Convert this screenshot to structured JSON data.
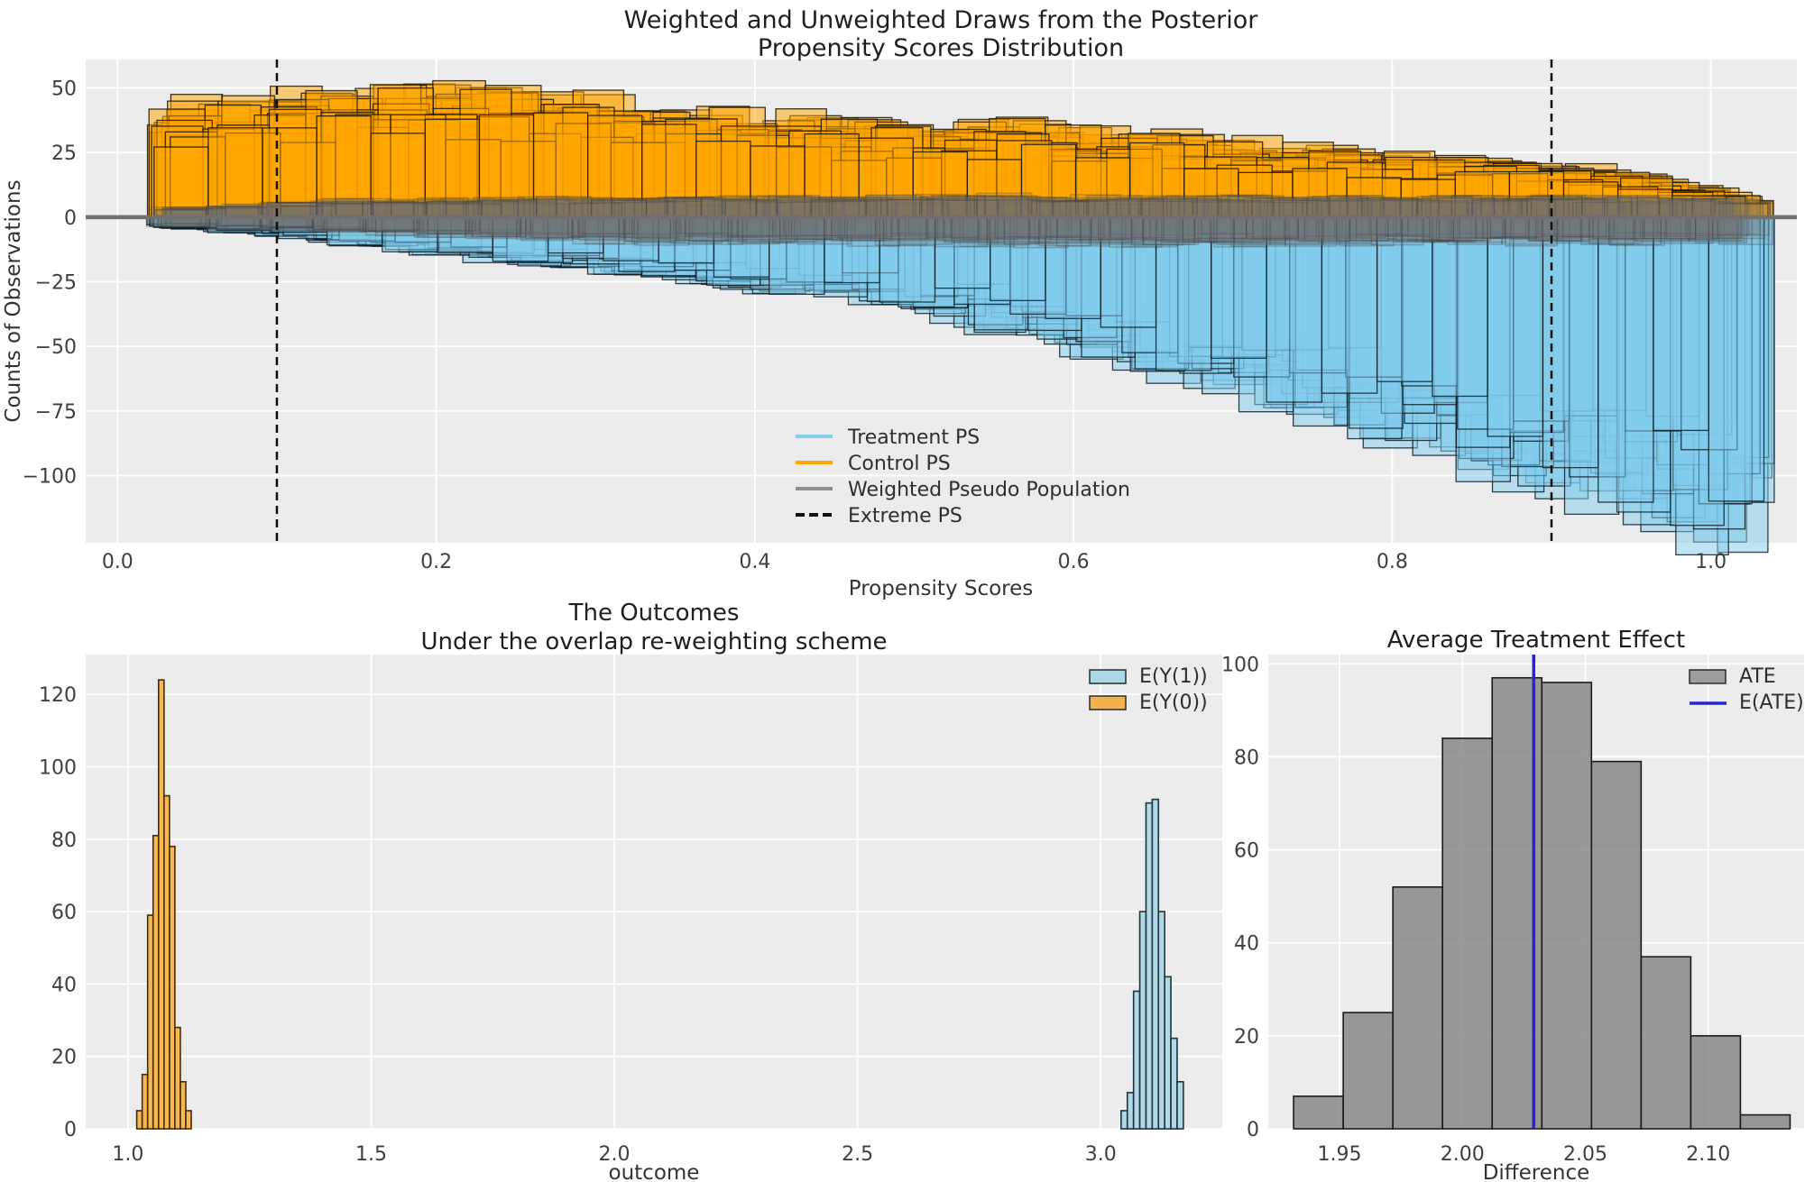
{
  "figure": {
    "background": "#ffffff",
    "axes_background": "#ececec",
    "grid_color": "#ffffff",
    "tick_color": "#3f3f3f",
    "label_color": "#333333",
    "title_color": "#1f1f1f"
  },
  "chart_data": [
    {
      "id": "posterior-ps-distribution",
      "type": "histogram-draws",
      "title_lines": [
        "Weighted and Unweighted Draws from the Posterior",
        "Propensity Scores Distribution"
      ],
      "xlabel": "Propensity Scores",
      "ylabel": "Counts of Observations",
      "xlim": [
        -0.02,
        1.054
      ],
      "ylim": [
        -126,
        61
      ],
      "xticks": [
        0.0,
        0.2,
        0.4,
        0.6,
        0.8,
        1.0
      ],
      "xtick_labels": [
        "0.0",
        "0.2",
        "0.4",
        "0.6",
        "0.8",
        "1.0"
      ],
      "yticks": [
        50,
        25,
        0,
        -25,
        -50,
        -75,
        -100
      ],
      "ytick_labels": [
        "50",
        "25",
        "0",
        "−25",
        "−50",
        "−75",
        "−100"
      ],
      "zero_line_color": "#6f6f6f",
      "extreme_ps_lines": [
        0.1,
        0.9
      ],
      "extreme_ps_color": "#0d0d0d",
      "bin_width": 0.0335,
      "x_start": 0.026,
      "series": [
        {
          "name": "Control PS",
          "gname": "control-ps-draws",
          "direction": 1,
          "n_draws": 22,
          "fill": "rgba(255,166,0,0.5)",
          "stroke": "rgba(30,20,4,0.85)",
          "profile": [
            [
              0.03,
              34
            ],
            [
              0.1,
              38
            ],
            [
              0.15,
              40
            ],
            [
              0.2,
              42
            ],
            [
              0.25,
              40
            ],
            [
              0.3,
              36
            ],
            [
              0.35,
              34
            ],
            [
              0.4,
              33
            ],
            [
              0.45,
              31
            ],
            [
              0.5,
              30
            ],
            [
              0.55,
              30
            ],
            [
              0.6,
              28
            ],
            [
              0.65,
              26
            ],
            [
              0.7,
              24
            ],
            [
              0.75,
              22
            ],
            [
              0.8,
              20
            ],
            [
              0.85,
              18
            ],
            [
              0.9,
              17
            ],
            [
              0.95,
              14
            ],
            [
              1.0,
              9
            ],
            [
              1.03,
              5
            ]
          ]
        },
        {
          "name": "Treatment PS",
          "gname": "treatment-ps-draws",
          "direction": -1,
          "n_draws": 22,
          "fill": "rgba(130,203,235,0.5)",
          "stroke": "rgba(8,20,28,0.8)",
          "profile": [
            [
              0.03,
              3
            ],
            [
              0.1,
              6
            ],
            [
              0.15,
              9
            ],
            [
              0.2,
              12
            ],
            [
              0.25,
              15
            ],
            [
              0.3,
              17
            ],
            [
              0.35,
              20
            ],
            [
              0.4,
              23
            ],
            [
              0.45,
              26
            ],
            [
              0.5,
              30
            ],
            [
              0.55,
              36
            ],
            [
              0.6,
              42
            ],
            [
              0.65,
              48
            ],
            [
              0.7,
              55
            ],
            [
              0.75,
              62
            ],
            [
              0.8,
              70
            ],
            [
              0.85,
              78
            ],
            [
              0.9,
              86
            ],
            [
              0.95,
              96
            ],
            [
              1.0,
              102
            ],
            [
              1.03,
              104
            ]
          ]
        },
        {
          "name": "Weighted Pseudo Population (above)",
          "gname": "weighted-pseudo-draws-above",
          "direction": 1,
          "n_draws": 12,
          "fill": "rgba(110,110,110,0.16)",
          "stroke": "rgba(60,60,60,0.3)",
          "profile": [
            [
              0.03,
              3
            ],
            [
              0.15,
              6
            ],
            [
              0.5,
              7
            ],
            [
              0.9,
              7
            ],
            [
              1.03,
              6
            ]
          ]
        },
        {
          "name": "Weighted Pseudo Population (below)",
          "gname": "weighted-pseudo-draws-below",
          "direction": -1,
          "n_draws": 12,
          "fill": "rgba(110,110,110,0.16)",
          "stroke": "rgba(60,60,60,0.3)",
          "profile": [
            [
              0.03,
              3
            ],
            [
              0.3,
              8
            ],
            [
              0.7,
              9
            ],
            [
              1.03,
              8
            ]
          ]
        }
      ],
      "legend": [
        {
          "label": "Treatment PS",
          "type": "line",
          "color": "#87CEEB"
        },
        {
          "label": "Control PS",
          "type": "line",
          "color": "#FFA500"
        },
        {
          "label": "Weighted Pseudo Population",
          "type": "line",
          "color": "#8f8f8f"
        },
        {
          "label": "Extreme PS",
          "type": "dashed-line",
          "color": "#111111"
        }
      ]
    },
    {
      "id": "outcomes",
      "type": "histogram",
      "title_lines": [
        "The Outcomes",
        "Under the overlap re-weighting scheme"
      ],
      "xlabel": "outcome",
      "xlim": [
        0.913,
        3.25
      ],
      "ylim": [
        0,
        131
      ],
      "xticks": [
        1.0,
        1.5,
        2.0,
        2.5,
        3.0
      ],
      "xtick_labels": [
        "1.0",
        "1.5",
        "2.0",
        "2.5",
        "3.0"
      ],
      "yticks": [
        0,
        20,
        40,
        60,
        80,
        100,
        120
      ],
      "ytick_labels": [
        "0",
        "20",
        "40",
        "60",
        "80",
        "100",
        "120"
      ],
      "series": [
        {
          "name": "E(Y(1))",
          "gname": "ey1-bars",
          "bin_start": 3.042,
          "bin_width": 0.0128,
          "values": [
            5,
            10,
            38,
            60,
            90,
            91,
            60,
            42,
            25,
            13
          ],
          "fill": "rgba(173,216,230,0.95)",
          "stroke": "#22313b"
        },
        {
          "name": "E(Y(0))",
          "gname": "ey0-bars",
          "bin_start": 1.018,
          "bin_width": 0.0112,
          "values": [
            5,
            15,
            59,
            81,
            124,
            92,
            78,
            28,
            13,
            5
          ],
          "fill": "rgba(247,181,71,0.95)",
          "stroke": "#3a2c10"
        }
      ],
      "legend": [
        {
          "label": "E(Y(1))",
          "type": "patch",
          "color": "#ADD8E6"
        },
        {
          "label": "E(Y(0))",
          "type": "patch",
          "color": "#F2B24E"
        }
      ]
    },
    {
      "id": "average-treatment-effect",
      "type": "histogram",
      "title_lines": [
        "Average Treatment Effect"
      ],
      "xlabel": "Difference",
      "xlim": [
        1.921,
        2.139
      ],
      "ylim": [
        0,
        102
      ],
      "xticks": [
        1.95,
        2.0,
        2.05,
        2.1
      ],
      "xtick_labels": [
        "1.95",
        "2.00",
        "2.05",
        "2.10"
      ],
      "yticks": [
        0,
        20,
        40,
        60,
        80,
        100
      ],
      "ytick_labels": [
        "0",
        "20",
        "40",
        "60",
        "80",
        "100"
      ],
      "series": [
        {
          "name": "ATE",
          "gname": "ate-bars",
          "bin_start": 1.9313,
          "bin_width": 0.0202,
          "values": [
            7,
            25,
            52,
            84,
            97,
            96,
            79,
            37,
            20,
            3
          ],
          "fill": "rgba(130,130,130,0.8)",
          "stroke": "#1a1a1a"
        }
      ],
      "vline": {
        "label": "E(ATE)",
        "x": 2.029,
        "color": "#2525d8"
      },
      "legend": [
        {
          "label": "ATE",
          "type": "patch",
          "color": "#9d9d9d"
        },
        {
          "label": "E(ATE)",
          "type": "line",
          "color": "#2525d8"
        }
      ]
    }
  ]
}
